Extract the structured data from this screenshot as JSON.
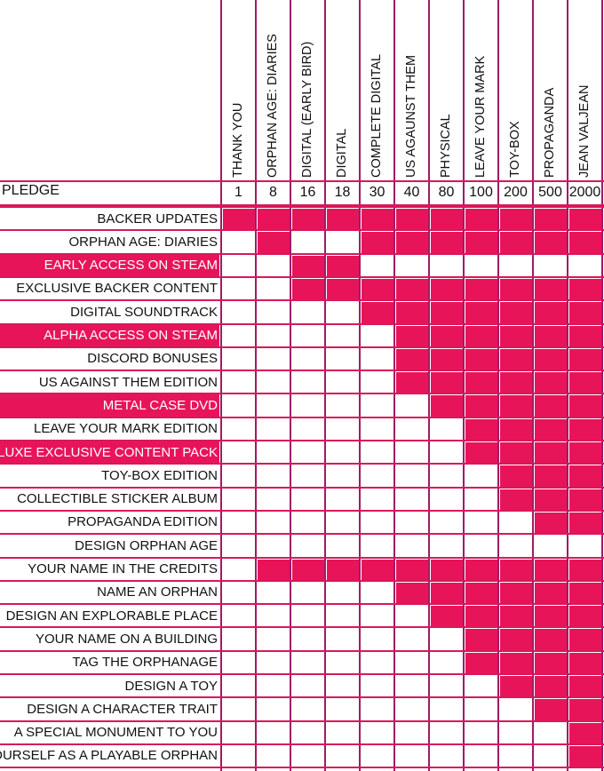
{
  "header": {
    "pledge_label": "PLEDGE"
  },
  "tiers": [
    {
      "name": "THANK YOU",
      "price": "1"
    },
    {
      "name": "ORPHAN AGE: DIARIES",
      "price": "8"
    },
    {
      "name": "DIGITAL (EARLY BIRD)",
      "price": "16"
    },
    {
      "name": "DIGITAL",
      "price": "18"
    },
    {
      "name": "COMPLETE DIGITAL",
      "price": "30"
    },
    {
      "name": "US AGAUNST THEM",
      "price": "40"
    },
    {
      "name": "PHYSICAL",
      "price": "80"
    },
    {
      "name": "LEAVE YOUR MARK",
      "price": "100"
    },
    {
      "name": "TOY-BOX",
      "price": "200"
    },
    {
      "name": "PROPAGANDA",
      "price": "500"
    },
    {
      "name": "JEAN VALJEAN",
      "price": "2000"
    }
  ],
  "rewards": [
    {
      "label": "BACKER UPDATES",
      "highlight": false,
      "included": [
        1,
        1,
        1,
        1,
        1,
        1,
        1,
        1,
        1,
        1,
        1
      ]
    },
    {
      "label": "ORPHAN AGE: DIARIES",
      "highlight": false,
      "included": [
        0,
        1,
        0,
        0,
        1,
        1,
        1,
        1,
        1,
        1,
        1
      ]
    },
    {
      "label": "EARLY ACCESS ON STEAM",
      "highlight": true,
      "included": [
        0,
        0,
        1,
        1,
        0,
        0,
        0,
        0,
        0,
        0,
        0
      ]
    },
    {
      "label": "EXCLUSIVE BACKER CONTENT",
      "highlight": false,
      "included": [
        0,
        0,
        1,
        1,
        1,
        1,
        1,
        1,
        1,
        1,
        1
      ]
    },
    {
      "label": "DIGITAL SOUNDTRACK",
      "highlight": false,
      "included": [
        0,
        0,
        0,
        0,
        1,
        1,
        1,
        1,
        1,
        1,
        1
      ]
    },
    {
      "label": "ALPHA ACCESS ON STEAM",
      "highlight": true,
      "included": [
        0,
        0,
        0,
        0,
        0,
        1,
        1,
        1,
        1,
        1,
        1
      ]
    },
    {
      "label": "DISCORD BONUSES",
      "highlight": false,
      "included": [
        0,
        0,
        0,
        0,
        0,
        1,
        1,
        1,
        1,
        1,
        1
      ]
    },
    {
      "label": "US AGAINST THEM EDITION",
      "highlight": false,
      "included": [
        0,
        0,
        0,
        0,
        0,
        1,
        1,
        1,
        1,
        1,
        1
      ]
    },
    {
      "label": "METAL CASE DVD",
      "highlight": true,
      "included": [
        0,
        0,
        0,
        0,
        0,
        0,
        1,
        1,
        1,
        1,
        1
      ]
    },
    {
      "label": "LEAVE YOUR MARK EDITION",
      "highlight": false,
      "included": [
        0,
        0,
        0,
        0,
        0,
        0,
        0,
        1,
        1,
        1,
        1
      ]
    },
    {
      "label": "DELUXE EXCLUSIVE CONTENT PACK",
      "highlight": true,
      "included": [
        0,
        0,
        0,
        0,
        0,
        0,
        0,
        1,
        1,
        1,
        1
      ]
    },
    {
      "label": "TOY-BOX EDITION",
      "highlight": false,
      "included": [
        0,
        0,
        0,
        0,
        0,
        0,
        0,
        0,
        1,
        1,
        1
      ]
    },
    {
      "label": "COLLECTIBLE STICKER ALBUM",
      "highlight": false,
      "included": [
        0,
        0,
        0,
        0,
        0,
        0,
        0,
        0,
        1,
        1,
        1
      ]
    },
    {
      "label": "PROPAGANDA EDITION",
      "highlight": false,
      "included": [
        0,
        0,
        0,
        0,
        0,
        0,
        0,
        0,
        0,
        1,
        1
      ]
    }
  ],
  "section": {
    "label": "DESIGN ORPHAN AGE"
  },
  "design_rewards": [
    {
      "label": "YOUR NAME IN THE CREDITS",
      "included": [
        0,
        1,
        1,
        1,
        1,
        1,
        1,
        1,
        1,
        1,
        1
      ]
    },
    {
      "label": "NAME AN ORPHAN",
      "included": [
        0,
        0,
        0,
        0,
        0,
        1,
        1,
        1,
        1,
        1,
        1
      ]
    },
    {
      "label": "DESIGN AN EXPLORABLE PLACE",
      "included": [
        0,
        0,
        0,
        0,
        0,
        0,
        1,
        1,
        1,
        1,
        1
      ]
    },
    {
      "label": "YOUR NAME ON A BUILDING",
      "included": [
        0,
        0,
        0,
        0,
        0,
        0,
        0,
        1,
        1,
        1,
        1
      ]
    },
    {
      "label": "TAG THE ORPHANAGE",
      "included": [
        0,
        0,
        0,
        0,
        0,
        0,
        0,
        1,
        1,
        1,
        1
      ]
    },
    {
      "label": "DESIGN A TOY",
      "included": [
        0,
        0,
        0,
        0,
        0,
        0,
        0,
        0,
        1,
        1,
        1
      ]
    },
    {
      "label": "DESIGN A CHARACTER TRAIT",
      "included": [
        0,
        0,
        0,
        0,
        0,
        0,
        0,
        0,
        0,
        1,
        1
      ]
    },
    {
      "label": "A SPECIAL MONUMENT TO YOU",
      "included": [
        0,
        0,
        0,
        0,
        0,
        0,
        0,
        0,
        0,
        0,
        1
      ]
    },
    {
      "label": "YOURSELF AS A PLAYABLE ORPHAN",
      "included": [
        0,
        0,
        0,
        0,
        0,
        0,
        0,
        0,
        0,
        0,
        1
      ]
    }
  ],
  "colors": {
    "accent": "#e8145a",
    "grid_vertical": "#a0196a",
    "grid_horizontal": "#d8185a"
  }
}
